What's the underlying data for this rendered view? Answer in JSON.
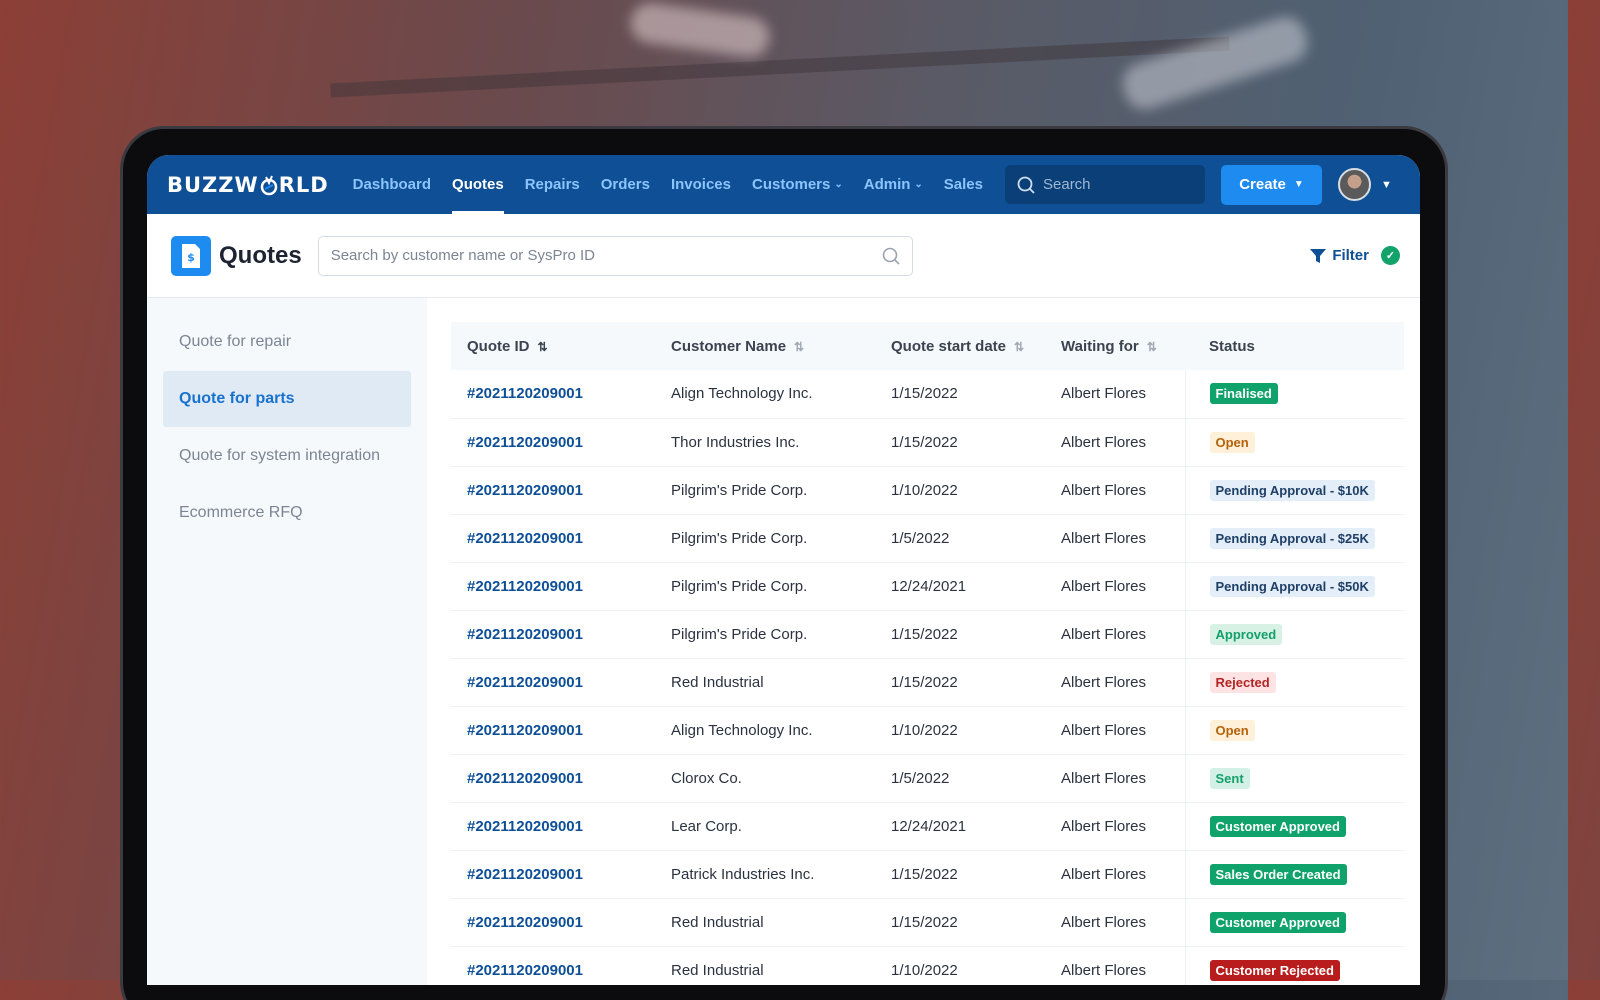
{
  "nav": {
    "logo": "BUZZWORLD",
    "logo_left": "BUZZW",
    "logo_right": "RLD",
    "items": [
      {
        "label": "Dashboard",
        "active": false,
        "dropdown": false
      },
      {
        "label": "Quotes",
        "active": true,
        "dropdown": false
      },
      {
        "label": "Repairs",
        "active": false,
        "dropdown": false
      },
      {
        "label": "Orders",
        "active": false,
        "dropdown": false
      },
      {
        "label": "Invoices",
        "active": false,
        "dropdown": false
      },
      {
        "label": "Customers",
        "active": false,
        "dropdown": true
      },
      {
        "label": "Admin",
        "active": false,
        "dropdown": true
      },
      {
        "label": "Sales",
        "active": false,
        "dropdown": false
      }
    ],
    "search_placeholder": "Search",
    "create_label": "Create"
  },
  "header": {
    "title": "Quotes",
    "search_placeholder": "Search by customer name or SysPro ID",
    "filter_label": "Filter"
  },
  "sidebar": {
    "items": [
      {
        "label": "Quote for repair",
        "active": false
      },
      {
        "label": "Quote for parts",
        "active": true
      },
      {
        "label": "Quote for system integration",
        "active": false
      },
      {
        "label": "Ecommerce RFQ",
        "active": false
      }
    ]
  },
  "table": {
    "columns": [
      "Quote ID",
      "Customer Name",
      "Quote start date",
      "Waiting for",
      "Status"
    ],
    "rows": [
      {
        "id": "#2021120209001",
        "customer": "Align Technology Inc.",
        "date": "1/15/2022",
        "waiting": "Albert Flores",
        "status": "Finalised",
        "status_type": "green"
      },
      {
        "id": "#2021120209001",
        "customer": "Thor Industries Inc.",
        "date": "1/15/2022",
        "waiting": "Albert Flores",
        "status": "Open",
        "status_type": "open"
      },
      {
        "id": "#2021120209001",
        "customer": "Pilgrim's Pride Corp.",
        "date": "1/10/2022",
        "waiting": "Albert Flores",
        "status": "Pending Approval - $10K",
        "status_type": "pending"
      },
      {
        "id": "#2021120209001",
        "customer": "Pilgrim's Pride Corp.",
        "date": "1/5/2022",
        "waiting": "Albert Flores",
        "status": "Pending Approval - $25K",
        "status_type": "pending"
      },
      {
        "id": "#2021120209001",
        "customer": "Pilgrim's Pride Corp.",
        "date": "12/24/2021",
        "waiting": "Albert Flores",
        "status": "Pending Approval - $50K",
        "status_type": "pending"
      },
      {
        "id": "#2021120209001",
        "customer": "Pilgrim's Pride Corp.",
        "date": "1/15/2022",
        "waiting": "Albert Flores",
        "status": "Approved",
        "status_type": "approved"
      },
      {
        "id": "#2021120209001",
        "customer": "Red Industrial",
        "date": "1/15/2022",
        "waiting": "Albert Flores",
        "status": "Rejected",
        "status_type": "rejected"
      },
      {
        "id": "#2021120209001",
        "customer": "Align Technology Inc.",
        "date": "1/10/2022",
        "waiting": "Albert Flores",
        "status": "Open",
        "status_type": "open"
      },
      {
        "id": "#2021120209001",
        "customer": "Clorox Co.",
        "date": "1/5/2022",
        "waiting": "Albert Flores",
        "status": "Sent",
        "status_type": "sent"
      },
      {
        "id": "#2021120209001",
        "customer": "Lear Corp.",
        "date": "12/24/2021",
        "waiting": "Albert Flores",
        "status": "Customer Approved",
        "status_type": "green"
      },
      {
        "id": "#2021120209001",
        "customer": "Patrick Industries Inc.",
        "date": "1/15/2022",
        "waiting": "Albert Flores",
        "status": "Sales Order Created",
        "status_type": "green"
      },
      {
        "id": "#2021120209001",
        "customer": "Red Industrial",
        "date": "1/15/2022",
        "waiting": "Albert Flores",
        "status": "Customer Approved",
        "status_type": "green"
      },
      {
        "id": "#2021120209001",
        "customer": "Red Industrial",
        "date": "1/10/2022",
        "waiting": "Albert Flores",
        "status": "Customer Rejected",
        "status_type": "red"
      }
    ]
  },
  "colors": {
    "nav_bg": "#0e4f95",
    "accent": "#1e8bf0",
    "link": "#0e4f95"
  }
}
